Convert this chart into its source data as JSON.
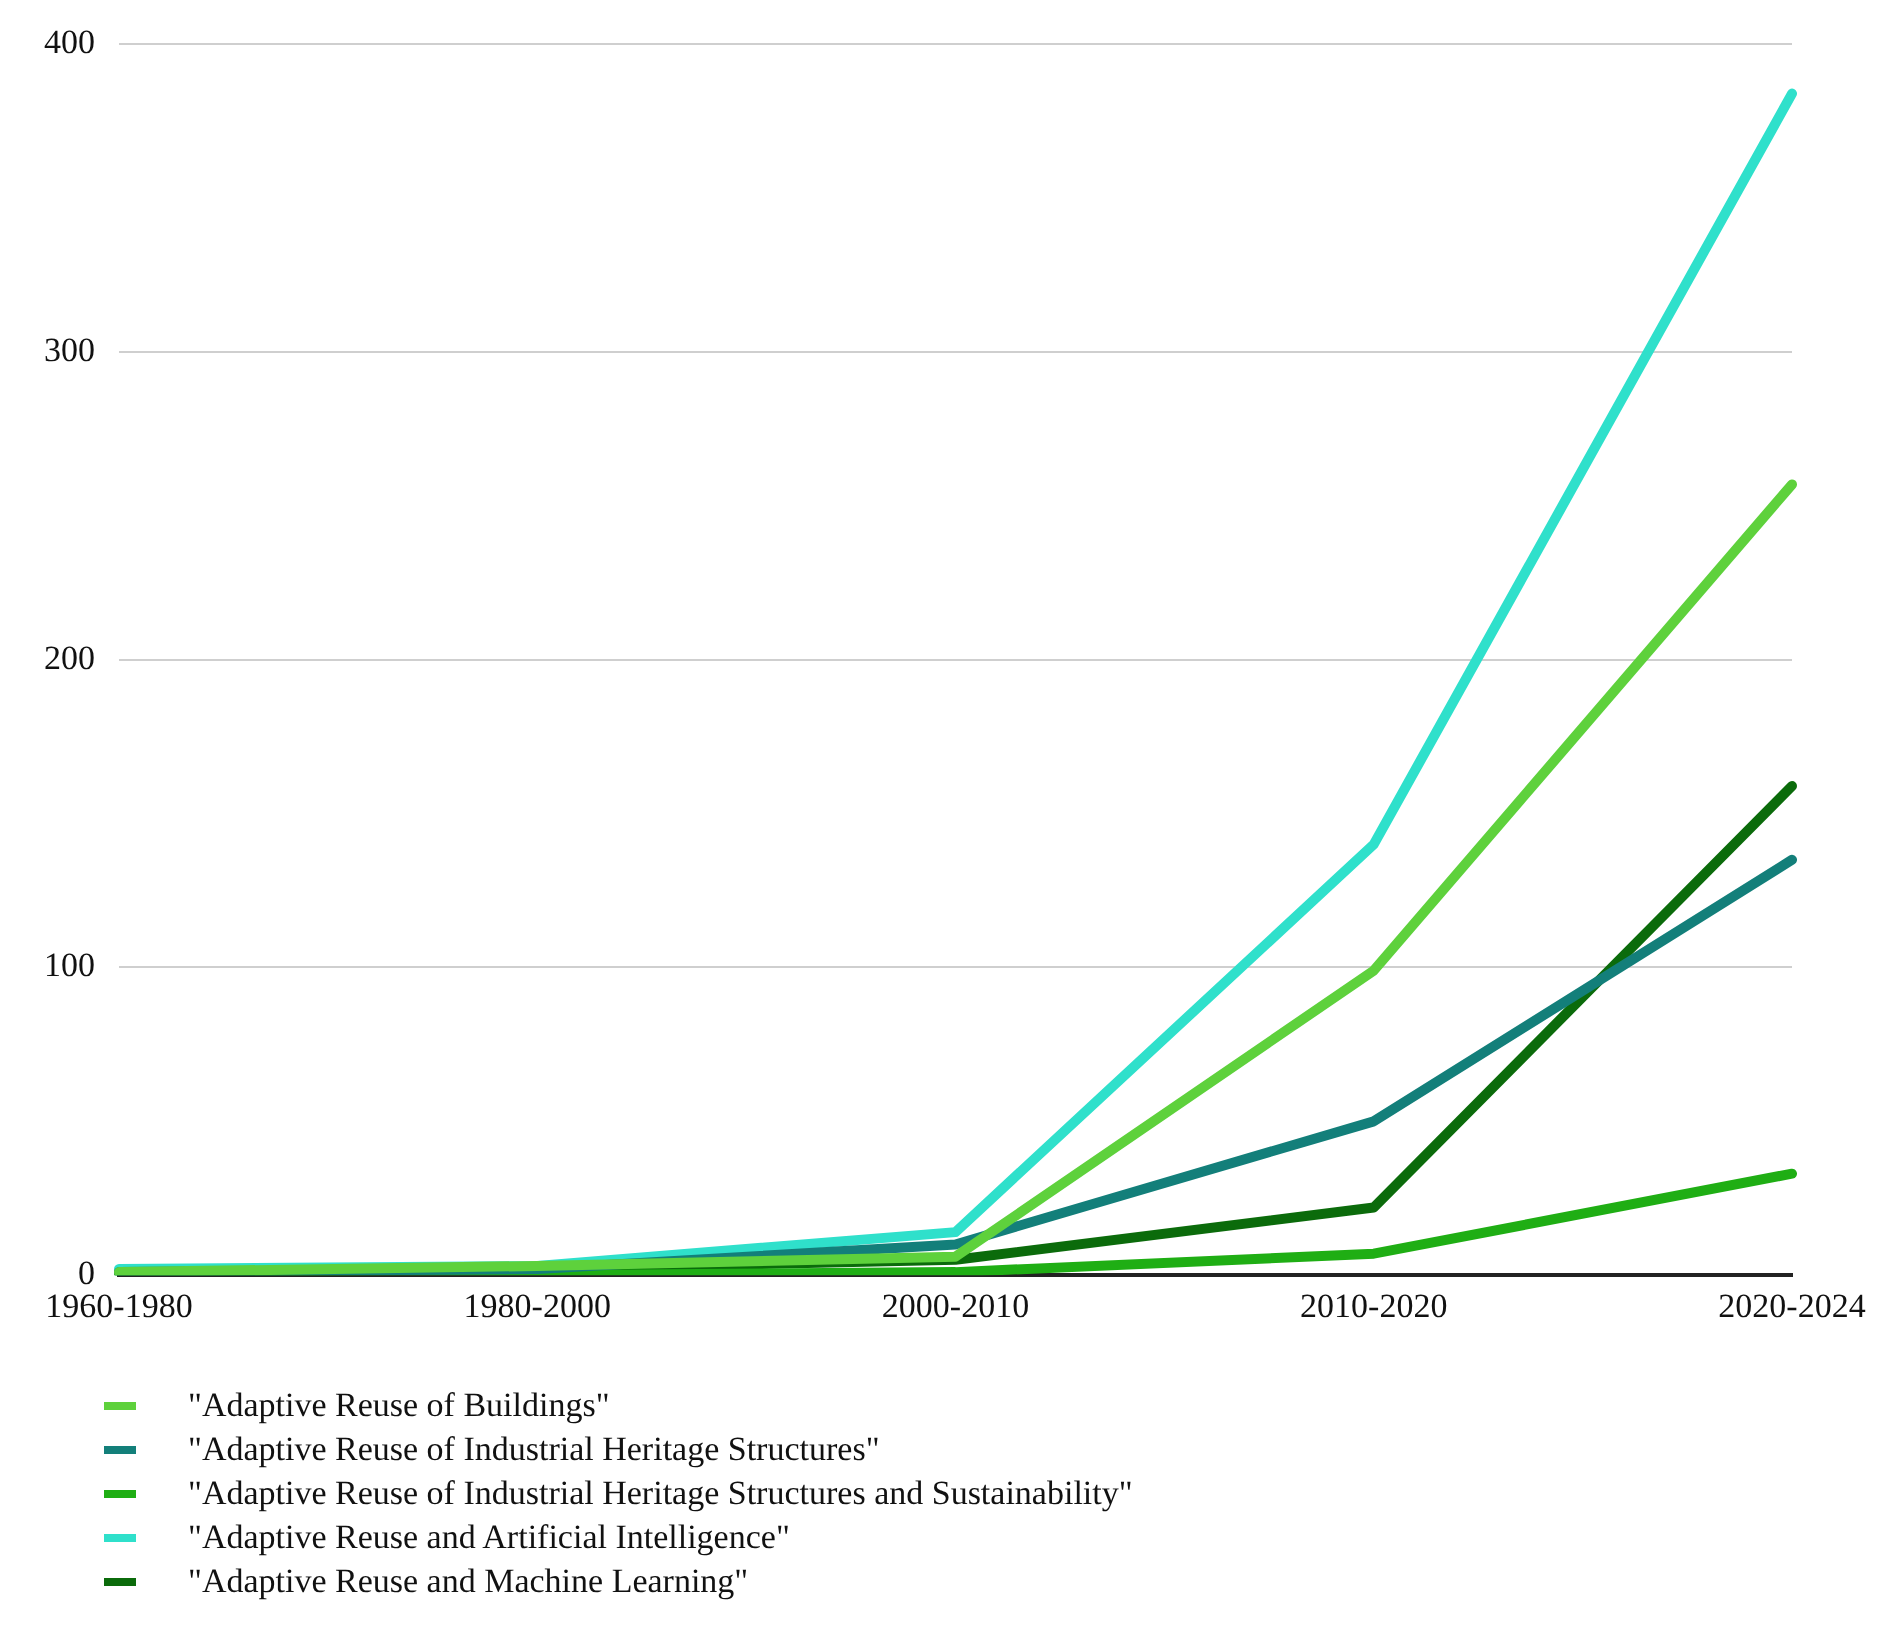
{
  "chart_data": {
    "type": "line",
    "categories": [
      "1960-1980",
      "1980-2000",
      "2000-2010",
      "2010-2020",
      "2020-2024"
    ],
    "series": [
      {
        "name": "\"Adaptive Reuse of Buildings\"",
        "color": "#5ed13c",
        "values": [
          1,
          3,
          6,
          99,
          257
        ]
      },
      {
        "name": "\"Adaptive Reuse of Industrial Heritage Structures\"",
        "color": "#137f7a",
        "values": [
          1,
          2,
          10,
          50,
          135
        ]
      },
      {
        "name": "\"Adaptive Reuse of Industrial Heritage Structures and Sustainability\"",
        "color": "#1fae14",
        "values": [
          0,
          0,
          1,
          7,
          33
        ]
      },
      {
        "name": "\"Adaptive Reuse and Artificial Intelligence\"",
        "color": "#2fe0cb",
        "values": [
          2,
          3,
          14,
          140,
          384
        ]
      },
      {
        "name": "\"Adaptive Reuse and Machine Learning\"",
        "color": "#0b6b0b",
        "values": [
          1,
          2,
          5,
          22,
          159
        ]
      }
    ],
    "ylim": [
      0,
      400
    ],
    "yticks": [
      0,
      100,
      200,
      300,
      400
    ],
    "grid": "y",
    "legend": "bottom left",
    "marker": "none",
    "line_style": "solid"
  }
}
